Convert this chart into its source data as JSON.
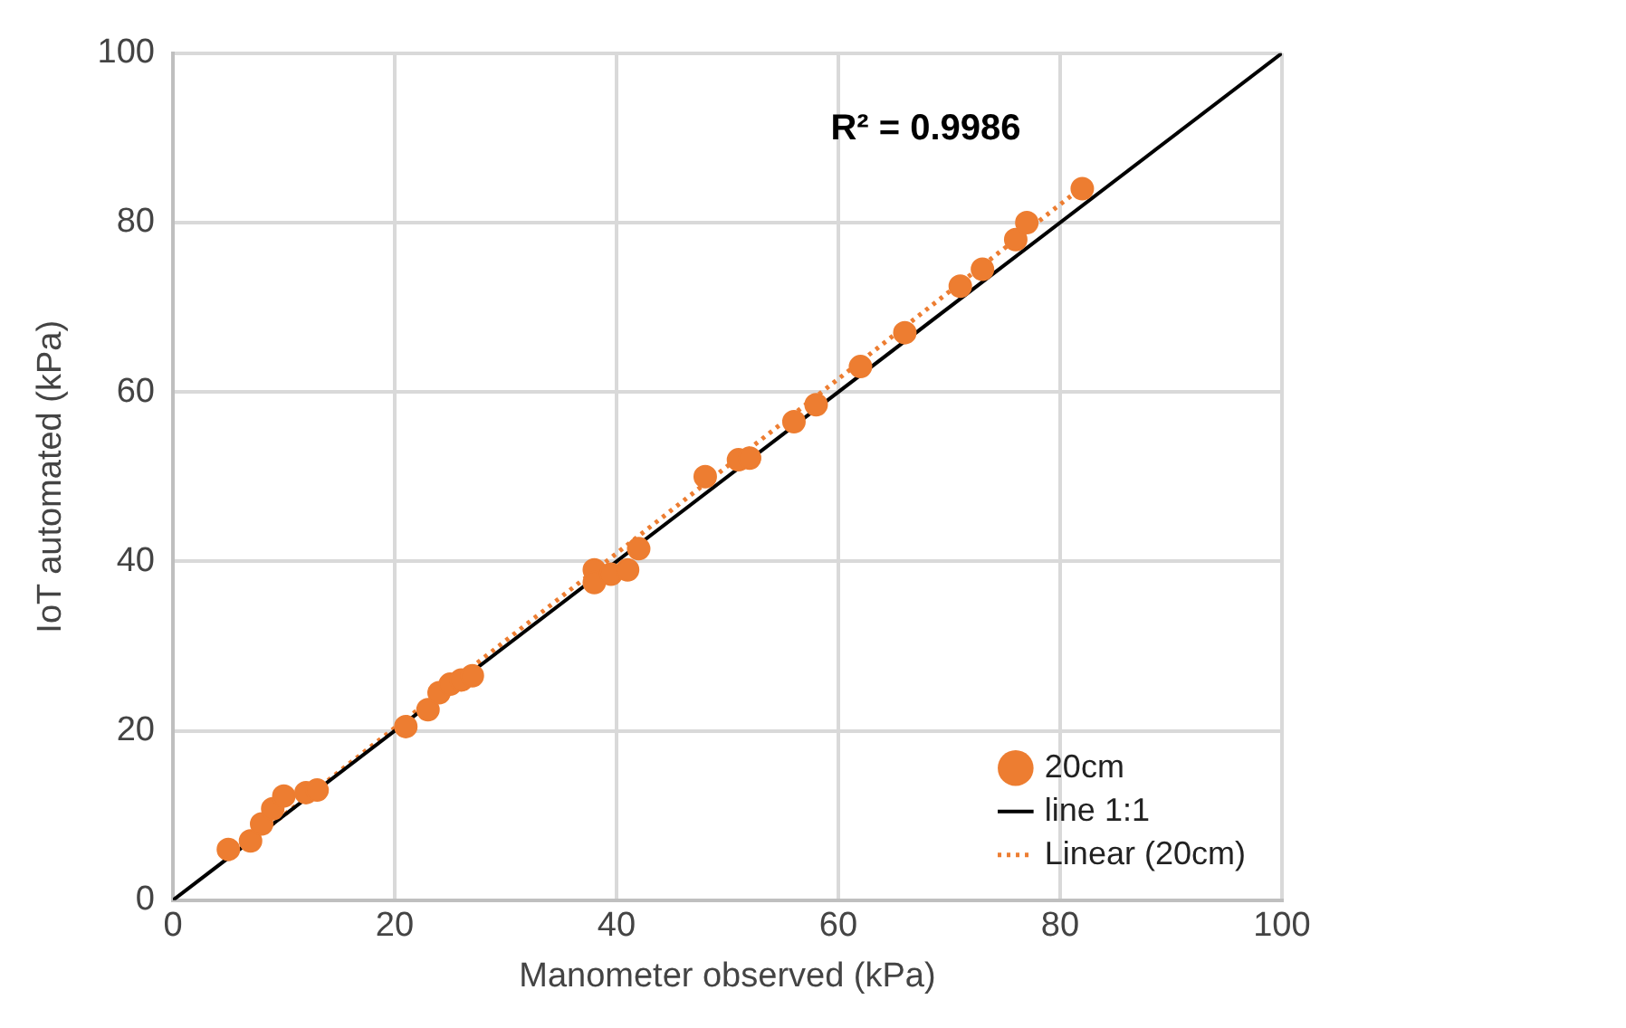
{
  "chart_data": {
    "type": "scatter",
    "xlabel": "Manometer observed (kPa)",
    "ylabel": "IoT automated (kPa)",
    "xlim": [
      0,
      100
    ],
    "xticks": [
      0,
      20,
      40,
      60,
      80,
      100
    ],
    "ylim": [
      0,
      100
    ],
    "yticks": [
      0,
      20,
      40,
      60,
      80,
      100
    ],
    "grid": true,
    "legend": "bottom right",
    "annotations": [
      "R² = 0.9986"
    ],
    "series": [
      {
        "name": "20cm",
        "color": "#ed7d31",
        "marker": "circle",
        "x": [
          5,
          7,
          8,
          9,
          10,
          12,
          13,
          21,
          23,
          24,
          25,
          26,
          27,
          38,
          38,
          39.5,
          41,
          42,
          48,
          51,
          52,
          56,
          58,
          62,
          66,
          71,
          73,
          76,
          77,
          82
        ],
        "values": [
          6,
          7,
          9,
          10.8,
          12.3,
          12.7,
          13,
          20.5,
          22.5,
          24.5,
          25.5,
          26,
          26.5,
          39,
          37.5,
          38.5,
          39,
          41.5,
          50,
          52,
          52.2,
          56.5,
          58.5,
          63,
          67,
          72.5,
          74.5,
          78,
          80,
          84
        ]
      },
      {
        "name": "line 1:1",
        "type": "line",
        "color": "#000000",
        "line_style": "solid",
        "x": [
          0,
          100
        ],
        "values": [
          0,
          100
        ]
      },
      {
        "name": "Linear (20cm)",
        "type": "line",
        "color": "#ed7d31",
        "line_style": "dotted",
        "x": [
          5,
          82
        ],
        "values": [
          4.9,
          84.2
        ]
      }
    ]
  }
}
